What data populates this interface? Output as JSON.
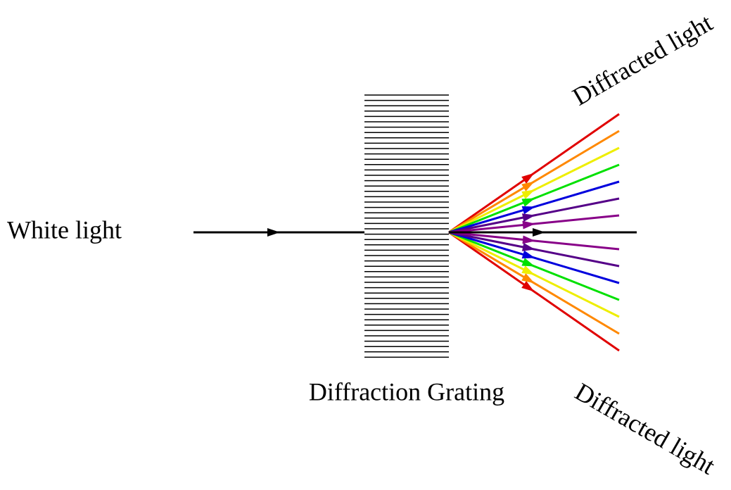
{
  "labels": {
    "incoming": "White light",
    "grating": "Diffraction Grating",
    "diffracted_top": "Diffracted light",
    "diffracted_bottom": "Diffracted light"
  }
}
